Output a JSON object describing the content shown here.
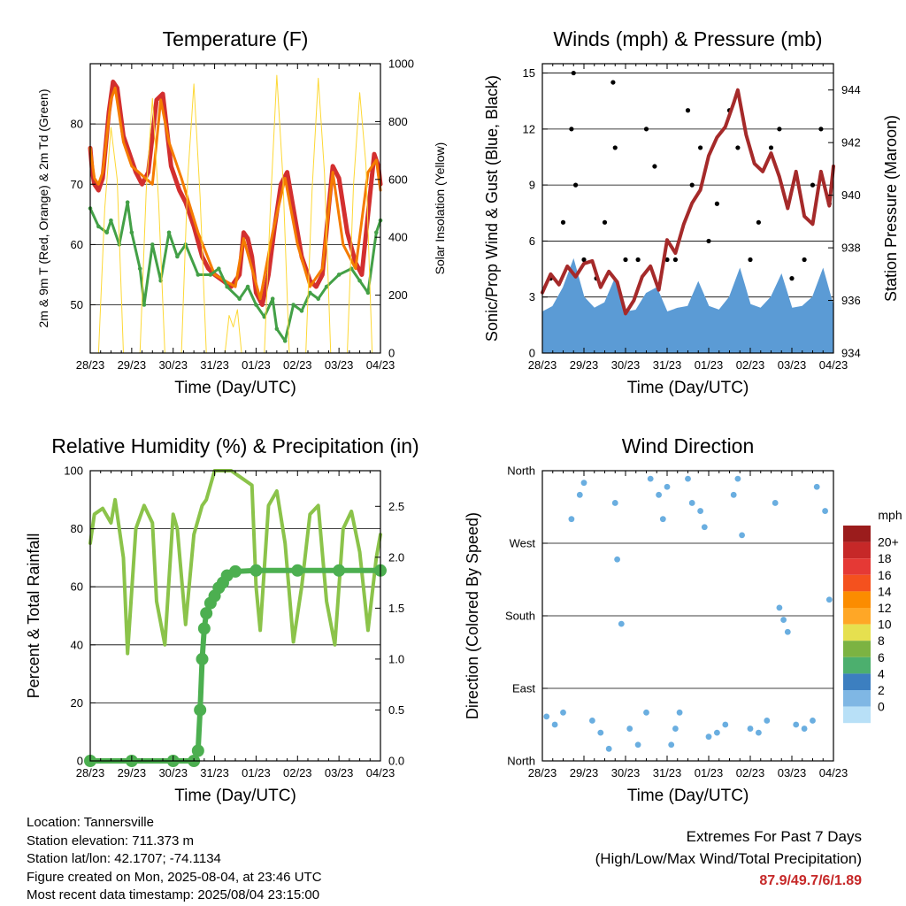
{
  "chart_data": [
    {
      "type": "line",
      "title": "Temperature (F)",
      "xlabel": "Time (Day/UTC)",
      "ylabel": "2m & 9m T (Red, Orange) & 2m Td (Green)",
      "y2label": "Solar Insolation (Yellow)",
      "x_ticks": [
        "28/23",
        "29/23",
        "30/23",
        "31/23",
        "01/23",
        "02/23",
        "03/23",
        "04/23"
      ],
      "ylim": [
        42,
        90
      ],
      "y_ticks": [
        50,
        60,
        70,
        80
      ],
      "y2lim": [
        0,
        1000
      ],
      "y2_ticks": [
        0,
        200,
        400,
        600,
        800,
        1000
      ],
      "grid": true,
      "series": [
        {
          "color": "#d32f2f",
          "x": [
            0,
            0.05,
            0.1,
            0.2,
            0.3,
            0.45,
            0.55,
            0.65,
            0.8,
            1.0,
            1.1,
            1.25,
            1.4,
            1.6,
            1.75,
            1.85,
            1.95,
            2.05,
            2.15,
            2.3,
            2.5,
            2.7,
            2.85,
            3.0,
            3.2,
            3.4,
            3.6,
            3.7,
            3.8,
            3.9,
            4.0,
            4.15,
            4.3,
            4.45,
            4.6,
            4.75,
            4.9,
            5.1,
            5.3,
            5.45,
            5.6,
            5.75,
            5.85,
            6.0,
            6.2,
            6.4,
            6.55,
            6.7,
            6.85,
            6.95,
            7.0
          ],
          "values": [
            76,
            72,
            70,
            69,
            71,
            82,
            87,
            86,
            78,
            74,
            72,
            70,
            72,
            84,
            85,
            79,
            73,
            71,
            69,
            67,
            63,
            58,
            56,
            55,
            54,
            53,
            55,
            62,
            61,
            58,
            52,
            50,
            55,
            63,
            70,
            72,
            66,
            58,
            54,
            53,
            55,
            66,
            73,
            71,
            62,
            57,
            55,
            65,
            75,
            73,
            70
          ]
        },
        {
          "color": "#f57c00",
          "x": [
            0,
            0.1,
            0.2,
            0.3,
            0.5,
            0.6,
            0.8,
            1.0,
            1.5,
            1.7,
            1.9,
            2.2,
            2.6,
            3.0,
            3.5,
            3.7,
            3.9,
            4.1,
            4.4,
            4.7,
            5.0,
            5.3,
            5.6,
            5.85,
            6.1,
            6.4,
            6.7,
            6.9,
            7.0
          ],
          "values": [
            76,
            71,
            70,
            72,
            84,
            86,
            77,
            73,
            70,
            84,
            77,
            71,
            62,
            55,
            53,
            61,
            56,
            51,
            62,
            71,
            60,
            53,
            56,
            72,
            60,
            56,
            72,
            74,
            69
          ]
        },
        {
          "color": "#43a047",
          "x": [
            0,
            0.2,
            0.4,
            0.5,
            0.7,
            0.9,
            1.0,
            1.2,
            1.3,
            1.5,
            1.7,
            1.9,
            2.1,
            2.3,
            2.6,
            2.9,
            3.1,
            3.3,
            3.6,
            3.8,
            4.0,
            4.2,
            4.4,
            4.5,
            4.7,
            4.9,
            5.1,
            5.3,
            5.5,
            5.7,
            6.0,
            6.3,
            6.5,
            6.7,
            6.9,
            7.0
          ],
          "values": [
            66,
            63,
            62,
            64,
            60,
            67,
            62,
            56,
            50,
            60,
            54,
            62,
            58,
            60,
            55,
            55,
            56,
            53,
            51,
            53,
            50,
            48,
            51,
            46,
            44,
            50,
            49,
            52,
            51,
            53,
            55,
            56,
            54,
            52,
            62,
            64
          ]
        },
        {
          "color": "#fdd835",
          "axis": "y2",
          "x": [
            0.2,
            0.35,
            0.5,
            0.65,
            0.8,
            1.2,
            1.35,
            1.5,
            1.65,
            1.8,
            2.2,
            2.35,
            2.5,
            2.65,
            2.8,
            3.25,
            3.35,
            3.45,
            3.55,
            3.65,
            4.2,
            4.35,
            4.5,
            4.65,
            4.8,
            5.2,
            5.35,
            5.5,
            5.65,
            5.8,
            6.2,
            6.35,
            6.5,
            6.65,
            6.8
          ],
          "values": [
            0,
            500,
            780,
            600,
            0,
            0,
            560,
            880,
            520,
            0,
            0,
            600,
            930,
            540,
            0,
            0,
            130,
            90,
            150,
            0,
            0,
            520,
            960,
            600,
            0,
            0,
            560,
            950,
            620,
            0,
            0,
            580,
            900,
            650,
            0
          ]
        }
      ]
    },
    {
      "type": "scatter",
      "title": "Winds (mph) & Pressure (mb)",
      "xlabel": "Time (Day/UTC)",
      "ylabel": "Sonic/Prop Wind & Gust (Blue, Black)",
      "y2label": "Station Pressure (Maroon)",
      "x_ticks": [
        "28/23",
        "29/23",
        "30/23",
        "31/23",
        "01/23",
        "02/23",
        "03/23",
        "04/23"
      ],
      "ylim": [
        0,
        15.5
      ],
      "y_ticks": [
        0,
        3,
        6,
        9,
        12,
        15
      ],
      "y2lim": [
        934,
        945
      ],
      "y2_ticks": [
        934,
        936,
        938,
        940,
        942,
        944
      ],
      "grid": true,
      "series": [
        {
          "color": "#5b9bd5",
          "type": "area",
          "x": [
            0,
            0.25,
            0.5,
            0.75,
            1.0,
            1.25,
            1.5,
            1.75,
            2.0,
            2.25,
            2.5,
            2.75,
            3.0,
            3.25,
            3.5,
            3.75,
            4.0,
            4.25,
            4.5,
            4.75,
            5.0,
            5.25,
            5.5,
            5.75,
            6.0,
            6.25,
            6.5,
            6.75,
            7.0
          ],
          "values": [
            2.2,
            2.5,
            3.5,
            5,
            3,
            2.4,
            2.7,
            4,
            2.2,
            2.3,
            3.2,
            3.5,
            2.2,
            2.4,
            2.5,
            3.8,
            2.5,
            2.3,
            3.0,
            4.5,
            2.6,
            2.4,
            3.0,
            4.2,
            2.4,
            2.5,
            3.0,
            4.5,
            2.5
          ]
        },
        {
          "color": "#000000",
          "type": "scatter",
          "x": [
            0.2,
            0.5,
            0.7,
            0.75,
            0.8,
            1.0,
            1.3,
            1.5,
            1.7,
            1.75,
            2.0,
            2.3,
            2.5,
            2.7,
            3.0,
            3.2,
            3.5,
            3.6,
            3.8,
            4.0,
            4.2,
            4.5,
            4.7,
            5.0,
            5.2,
            5.5,
            5.7,
            6.0,
            6.3,
            6.5,
            6.7,
            6.9
          ],
          "values": [
            4,
            7,
            12,
            15,
            9,
            5,
            4,
            7,
            14.5,
            11,
            5,
            5,
            12,
            10,
            5,
            5,
            13,
            9,
            11,
            6,
            8,
            13,
            11,
            5,
            7,
            11,
            12,
            4,
            5,
            9,
            12,
            8
          ]
        },
        {
          "color": "#a52a2a",
          "axis": "y2",
          "x": [
            0,
            0.2,
            0.4,
            0.6,
            0.8,
            1.0,
            1.2,
            1.4,
            1.6,
            1.8,
            2.0,
            2.2,
            2.4,
            2.6,
            2.8,
            3.0,
            3.2,
            3.4,
            3.6,
            3.8,
            4.0,
            4.2,
            4.4,
            4.6,
            4.7,
            4.9,
            5.1,
            5.3,
            5.5,
            5.7,
            5.9,
            6.1,
            6.3,
            6.5,
            6.7,
            6.9,
            7.0
          ],
          "values": [
            936.3,
            937.0,
            936.6,
            937.3,
            936.9,
            937.4,
            937.5,
            936.5,
            937.1,
            936.7,
            935.5,
            936.0,
            936.9,
            937.3,
            936.4,
            938.3,
            937.8,
            938.9,
            939.7,
            940.2,
            941.5,
            942.2,
            942.6,
            943.5,
            944.0,
            942.3,
            941.2,
            940.9,
            941.6,
            940.7,
            939.5,
            940.9,
            939.2,
            938.9,
            940.9,
            939.6,
            941.1
          ]
        }
      ]
    },
    {
      "type": "line",
      "title": "Relative Humidity (%) & Precipitation (in)",
      "xlabel": "Time (Day/UTC)",
      "ylabel": "Percent & Total Rainfall",
      "x_ticks": [
        "28/23",
        "29/23",
        "30/23",
        "31/23",
        "01/23",
        "02/23",
        "03/23",
        "04/23"
      ],
      "ylim": [
        0,
        100
      ],
      "y_ticks": [
        0,
        20,
        40,
        60,
        80,
        100
      ],
      "y2lim": [
        0,
        2.85
      ],
      "y2_ticks": [
        "0.0",
        "0.5",
        "1.0",
        "1.5",
        "2.0",
        "2.5"
      ],
      "grid": true,
      "series": [
        {
          "color": "#8bc34a",
          "x": [
            0,
            0.1,
            0.3,
            0.5,
            0.6,
            0.8,
            0.9,
            1.1,
            1.3,
            1.5,
            1.6,
            1.8,
            2.0,
            2.1,
            2.3,
            2.5,
            2.7,
            2.8,
            3.0,
            3.2,
            3.4,
            3.6,
            3.9,
            4.0,
            4.1,
            4.3,
            4.5,
            4.7,
            4.9,
            5.1,
            5.3,
            5.5,
            5.7,
            5.9,
            6.1,
            6.3,
            6.5,
            6.7,
            6.9,
            7.0
          ],
          "values": [
            75,
            85,
            87,
            82,
            90,
            70,
            37,
            80,
            88,
            82,
            55,
            40,
            85,
            80,
            47,
            78,
            88,
            90,
            100,
            100,
            100,
            98,
            95,
            60,
            45,
            88,
            93,
            75,
            41,
            60,
            85,
            88,
            55,
            40,
            80,
            86,
            72,
            45,
            70,
            78
          ]
        },
        {
          "color": "#4caf50",
          "axis": "y2",
          "x": [
            0,
            1.0,
            2.0,
            2.5,
            2.6,
            2.65,
            2.7,
            2.75,
            2.8,
            2.9,
            3.0,
            3.1,
            3.2,
            3.3,
            3.5,
            4.0,
            5.0,
            6.0,
            7.0
          ],
          "values": [
            0,
            0,
            0,
            0,
            0.1,
            0.5,
            1.0,
            1.3,
            1.45,
            1.55,
            1.62,
            1.7,
            1.75,
            1.82,
            1.86,
            1.87,
            1.87,
            1.87,
            1.87
          ]
        }
      ]
    },
    {
      "type": "scatter",
      "title": "Wind Direction",
      "xlabel": "Time (Day/UTC)",
      "ylabel": "Direction (Colored By Speed)",
      "x_ticks": [
        "28/23",
        "29/23",
        "30/23",
        "31/23",
        "01/23",
        "02/23",
        "03/23",
        "04/23"
      ],
      "y_ticks": [
        "North",
        "East",
        "South",
        "West",
        "North"
      ],
      "ylim": [
        0,
        360
      ],
      "grid": true,
      "legend": {
        "title": "mph",
        "position": "right",
        "labels": [
          "20+",
          "18",
          "16",
          "14",
          "12",
          "10",
          "8",
          "6",
          "4",
          "2",
          "0"
        ],
        "colors": [
          "#9b1c1c",
          "#c62828",
          "#e53935",
          "#f4511e",
          "#fb8c00",
          "#ffa726",
          "#e6e04f",
          "#7cb342",
          "#4caf6e",
          "#3c7fc0",
          "#7fb7e4",
          "#b8e0f7"
        ]
      },
      "series": [
        {
          "name": "",
          "color": "#6aaee0",
          "x": [
            0.1,
            0.3,
            0.5,
            0.7,
            0.9,
            1.0,
            1.2,
            1.4,
            1.6,
            1.75,
            1.8,
            1.9,
            2.1,
            2.3,
            2.5,
            2.6,
            2.8,
            2.9,
            3.0,
            3.1,
            3.2,
            3.3,
            3.5,
            3.6,
            3.8,
            3.9,
            4.0,
            4.2,
            4.4,
            4.6,
            4.7,
            4.8,
            5.0,
            5.2,
            5.4,
            5.6,
            5.7,
            5.8,
            5.9,
            6.1,
            6.3,
            6.5,
            6.6,
            6.8,
            6.9
          ],
          "values": [
            55,
            45,
            60,
            300,
            330,
            345,
            50,
            35,
            15,
            320,
            250,
            170,
            40,
            20,
            60,
            350,
            330,
            300,
            340,
            20,
            40,
            60,
            350,
            320,
            310,
            290,
            30,
            35,
            45,
            330,
            350,
            280,
            40,
            35,
            50,
            320,
            190,
            175,
            160,
            45,
            40,
            50,
            340,
            310,
            200
          ]
        }
      ]
    }
  ],
  "info": {
    "location": "Location: Tannersville",
    "elevation": "Station elevation: 711.373 m",
    "latlon": "Station lat/lon: 42.1707; -74.1134",
    "created": "Figure created on Mon, 2025-08-04, at 23:46 UTC",
    "recent": "Most recent data timestamp: 2025/08/04 23:15:00"
  },
  "extremes": {
    "title": "Extremes For Past 7 Days",
    "subtitle": "(High/Low/Max Wind/Total Precipitation)",
    "values": "87.9/49.7/6/1.89"
  }
}
